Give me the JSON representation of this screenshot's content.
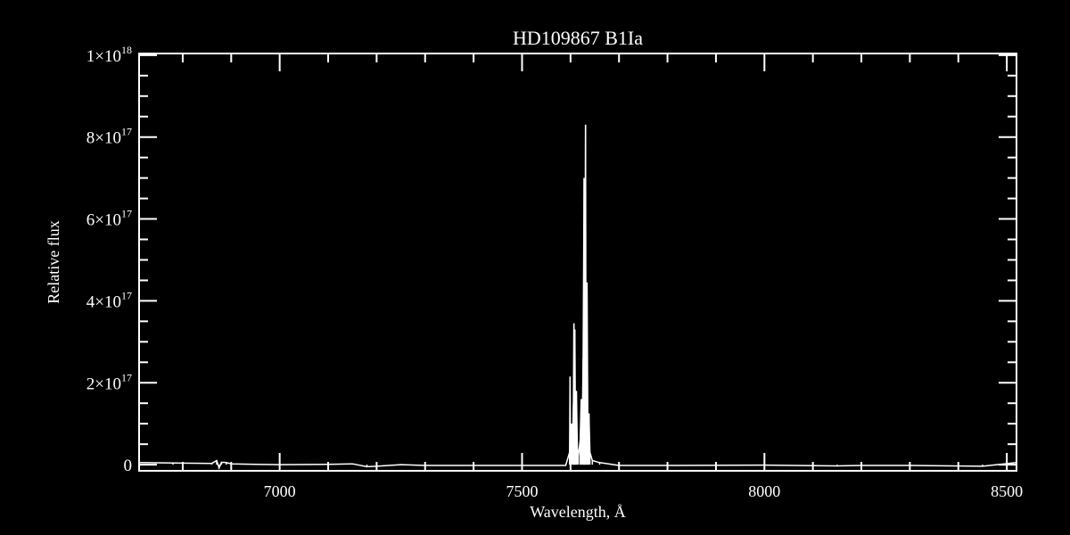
{
  "chart_data": {
    "type": "line",
    "title": "HD109867  B1Ia",
    "xlabel": "Wavelength, Å",
    "ylabel": "Relative flux",
    "xlim": [
      6710,
      8520
    ],
    "ylim": [
      -1.5e+16,
      1.004e+18
    ],
    "x_ticks": [
      {
        "value": 7000,
        "label": "7000"
      },
      {
        "value": 7500,
        "label": "7500"
      },
      {
        "value": 8000,
        "label": "8000"
      },
      {
        "value": 8500,
        "label": "8500"
      }
    ],
    "x_minor_step": 100,
    "y_ticks": [
      {
        "value": 0,
        "mantissa": "0",
        "exponent": ""
      },
      {
        "value": 2e+17,
        "mantissa": "2×10",
        "exponent": "17"
      },
      {
        "value": 4e+17,
        "mantissa": "4×10",
        "exponent": "17"
      },
      {
        "value": 6e+17,
        "mantissa": "6×10",
        "exponent": "17"
      },
      {
        "value": 8e+17,
        "mantissa": "8×10",
        "exponent": "17"
      },
      {
        "value": 1e+18,
        "mantissa": "1×10",
        "exponent": "18"
      }
    ],
    "y_minor_step": 5e+16,
    "grid": false,
    "colors": {
      "background": "#000000",
      "foreground": "#ffffff"
    },
    "series": [
      {
        "x": [
          6710,
          6780,
          6860,
          6870,
          6875,
          6880,
          6890,
          6900,
          6950,
          7000,
          7100,
          7150,
          7180,
          7200,
          7250,
          7300,
          7400,
          7500,
          7590,
          7598,
          7599,
          7600,
          7602,
          7604,
          7606,
          7607,
          7608,
          7609,
          7610,
          7612,
          7614,
          7616,
          7620,
          7622,
          7624,
          7626,
          7628,
          7629,
          7631,
          7632,
          7634,
          7636,
          7638,
          7640,
          7645,
          7660,
          7700,
          7800,
          8000,
          8150,
          8200,
          8300,
          8450,
          8520
        ],
        "y": [
          5000000000000000.0,
          4000000000000000.0,
          3000000000000000.0,
          1e+16,
          -8000000000000000.0,
          6000000000000000.0,
          5000000000000000.0,
          2000000000000000.0,
          1000000000000000.0,
          0,
          1000000000000000.0,
          2000000000000000.0,
          -5000000000000000.0,
          -4000000000000000.0,
          0,
          -2000000000000000.0,
          -2000000000000000.0,
          -2000000000000000.0,
          -2000000000000000.0,
          3e+16,
          2.15e+17,
          2e+16,
          1e+17,
          5e+16,
          1.5e+17,
          3.45e+17,
          8e+16,
          3.3e+17,
          1e+17,
          1.8e+17,
          4e+16,
          2e+16,
          6e+16,
          1.6e+17,
          8e+16,
          2.6e+17,
          7e+17,
          1e+17,
          8.3e+17,
          1.5e+17,
          4.45e+17,
          5e+16,
          1.25e+17,
          3e+16,
          1e+16,
          5000000000000000.0,
          -2000000000000000.0,
          -2000000000000000.0,
          -1000000000000000.0,
          -3000000000000000.0,
          -2000000000000000.0,
          -2000000000000000.0,
          -4000000000000000.0,
          5000000000000000.0
        ]
      }
    ]
  }
}
